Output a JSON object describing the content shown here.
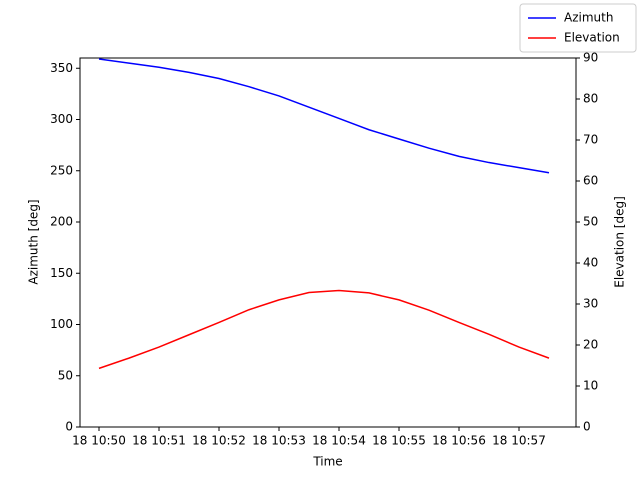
{
  "chart_data": {
    "type": "line",
    "x": [
      "18 10:50:00",
      "18 10:50:30",
      "18 10:51:00",
      "18 10:51:30",
      "18 10:52:00",
      "18 10:52:30",
      "18 10:53:00",
      "18 10:53:30",
      "18 10:54:00",
      "18 10:54:30",
      "18 10:55:00",
      "18 10:55:30",
      "18 10:56:00",
      "18 10:56:30",
      "18 10:57:00",
      "18 10:57:30"
    ],
    "series": [
      {
        "name": "Azimuth",
        "color": "#0000ff",
        "values": [
          359,
          355,
          351,
          346,
          340,
          332,
          323,
          312,
          301,
          290,
          281,
          272,
          264,
          258,
          253,
          248
        ]
      },
      {
        "name": "Elevation",
        "color": "#ff0000",
        "axis": "y2",
        "values": [
          14.3,
          16.8,
          19.5,
          22.5,
          25.5,
          28.6,
          31,
          32.8,
          33.3,
          32.7,
          31,
          28.5,
          25.5,
          22.6,
          19.5,
          16.8
        ]
      }
    ],
    "xlabel": "Time",
    "ylabel": "Azimuth [deg]",
    "y2label": "Elevation [deg]",
    "xlim": [
      "18 10:49:41",
      "18 10:57:57"
    ],
    "xticks": [
      {
        "value": "18 10:50:00",
        "label": "18 10:50"
      },
      {
        "value": "18 10:51:00",
        "label": "18 10:51"
      },
      {
        "value": "18 10:52:00",
        "label": "18 10:52"
      },
      {
        "value": "18 10:53:00",
        "label": "18 10:53"
      },
      {
        "value": "18 10:54:00",
        "label": "18 10:54"
      },
      {
        "value": "18 10:55:00",
        "label": "18 10:55"
      },
      {
        "value": "18 10:56:00",
        "label": "18 10:56"
      },
      {
        "value": "18 10:57:00",
        "label": "18 10:57"
      }
    ],
    "ylim": [
      0,
      360
    ],
    "yticks": [
      0,
      50,
      100,
      150,
      200,
      250,
      300,
      350
    ],
    "y2lim": [
      0,
      90
    ],
    "y2ticks": [
      0,
      10,
      20,
      30,
      40,
      50,
      60,
      70,
      80,
      90
    ],
    "legend": "upper right"
  }
}
